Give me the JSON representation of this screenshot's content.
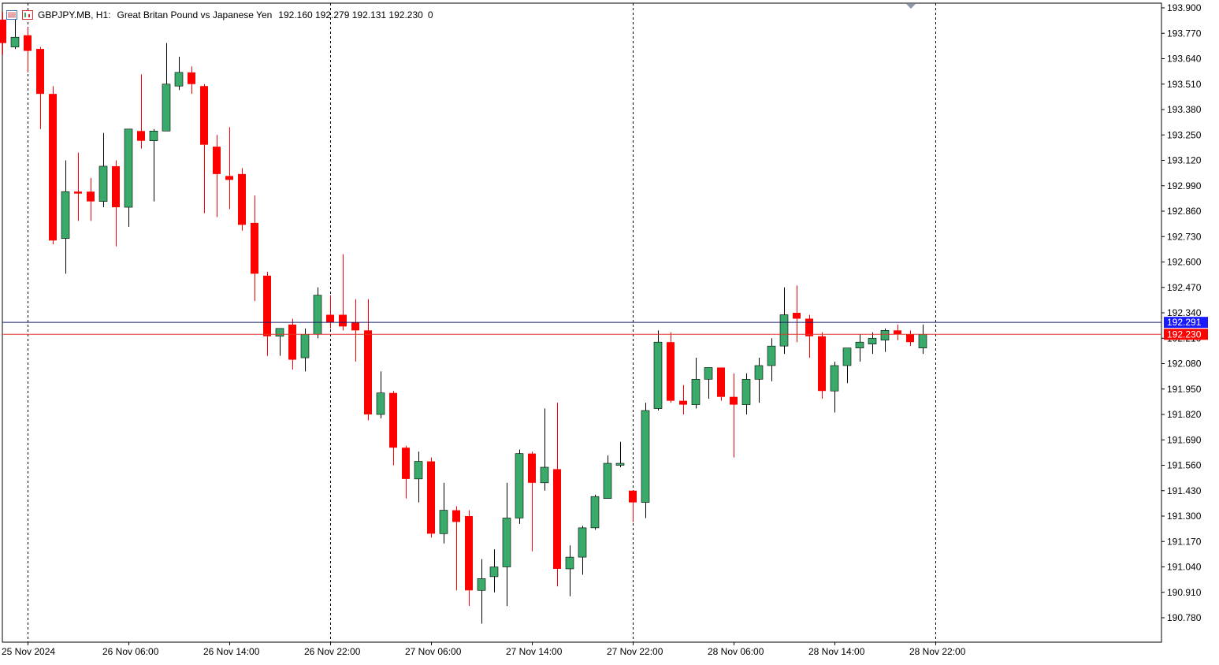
{
  "header": {
    "symbol": "GBPJPY.MB, H1:",
    "description": "Great Britan Pound vs Japanese Yen",
    "ohlc": "192.160 192.279 192.131 192.230",
    "extra": "0"
  },
  "colors": {
    "bull": "#3aaa6a",
    "bear": "#ff0000",
    "grid": "#000000",
    "ask_line": "#1a1a6e",
    "bid_line": "#e0362c",
    "ask_label_bg": "#1a1aff",
    "bid_label_bg": "#ff0000",
    "axis_text": "#000000"
  },
  "chart_data": {
    "type": "candlestick",
    "timeframe": "H1",
    "ylim": [
      190.69,
      193.91
    ],
    "y_ticks": [
      "193.900",
      "193.770",
      "193.640",
      "193.510",
      "193.380",
      "193.250",
      "193.120",
      "192.990",
      "192.860",
      "192.730",
      "192.600",
      "192.470",
      "192.340",
      "192.210",
      "192.080",
      "191.950",
      "191.820",
      "191.690",
      "191.560",
      "191.430",
      "191.300",
      "191.170",
      "191.040",
      "190.910",
      "190.780"
    ],
    "x_labels": [
      "25 Nov 2024",
      "26 Nov 06:00",
      "26 Nov 14:00",
      "26 Nov 22:00",
      "27 Nov 06:00",
      "27 Nov 14:00",
      "27 Nov 22:00",
      "28 Nov 06:00",
      "28 Nov 14:00",
      "28 Nov 22:00"
    ],
    "period_separators": [
      2,
      26,
      50,
      74
    ],
    "ask_price": "192.291",
    "bid_price": "192.230",
    "candles": [
      {
        "o": 193.84,
        "h": 193.88,
        "l": 193.66,
        "c": 193.72
      },
      {
        "o": 193.7,
        "h": 193.84,
        "l": 193.69,
        "c": 193.75
      },
      {
        "o": 193.76,
        "h": 193.8,
        "l": 193.57,
        "c": 193.68
      },
      {
        "o": 193.69,
        "h": 193.7,
        "l": 193.28,
        "c": 193.46
      },
      {
        "o": 193.46,
        "h": 193.5,
        "l": 192.69,
        "c": 192.71
      },
      {
        "o": 192.72,
        "h": 193.12,
        "l": 192.54,
        "c": 192.96
      },
      {
        "o": 192.96,
        "h": 193.16,
        "l": 192.81,
        "c": 192.95
      },
      {
        "o": 192.96,
        "h": 193.03,
        "l": 192.81,
        "c": 192.91
      },
      {
        "o": 192.91,
        "h": 193.26,
        "l": 192.88,
        "c": 193.09
      },
      {
        "o": 193.09,
        "h": 193.12,
        "l": 192.68,
        "c": 192.88
      },
      {
        "o": 192.88,
        "h": 193.28,
        "l": 192.78,
        "c": 193.28
      },
      {
        "o": 193.27,
        "h": 193.56,
        "l": 193.18,
        "c": 193.22
      },
      {
        "o": 193.22,
        "h": 193.28,
        "l": 192.91,
        "c": 193.27
      },
      {
        "o": 193.27,
        "h": 193.72,
        "l": 193.27,
        "c": 193.51
      },
      {
        "o": 193.5,
        "h": 193.65,
        "l": 193.48,
        "c": 193.57
      },
      {
        "o": 193.57,
        "h": 193.6,
        "l": 193.46,
        "c": 193.51
      },
      {
        "o": 193.5,
        "h": 193.51,
        "l": 192.85,
        "c": 193.2
      },
      {
        "o": 193.19,
        "h": 193.25,
        "l": 192.83,
        "c": 193.05
      },
      {
        "o": 193.04,
        "h": 193.29,
        "l": 192.87,
        "c": 193.02
      },
      {
        "o": 193.05,
        "h": 193.08,
        "l": 192.76,
        "c": 192.79
      },
      {
        "o": 192.8,
        "h": 192.94,
        "l": 192.4,
        "c": 192.54
      },
      {
        "o": 192.53,
        "h": 192.55,
        "l": 192.12,
        "c": 192.22
      },
      {
        "o": 192.22,
        "h": 192.26,
        "l": 192.12,
        "c": 192.26
      },
      {
        "o": 192.28,
        "h": 192.31,
        "l": 192.05,
        "c": 192.1
      },
      {
        "o": 192.11,
        "h": 192.26,
        "l": 192.04,
        "c": 192.23
      },
      {
        "o": 192.23,
        "h": 192.47,
        "l": 192.21,
        "c": 192.43
      },
      {
        "o": 192.33,
        "h": 192.43,
        "l": 192.26,
        "c": 192.29
      },
      {
        "o": 192.33,
        "h": 192.64,
        "l": 192.25,
        "c": 192.27
      },
      {
        "o": 192.29,
        "h": 192.41,
        "l": 192.09,
        "c": 192.25
      },
      {
        "o": 192.25,
        "h": 192.41,
        "l": 191.79,
        "c": 191.82
      },
      {
        "o": 191.82,
        "h": 192.04,
        "l": 191.8,
        "c": 191.93
      },
      {
        "o": 191.93,
        "h": 191.94,
        "l": 191.56,
        "c": 191.65
      },
      {
        "o": 191.65,
        "h": 191.66,
        "l": 191.39,
        "c": 191.49
      },
      {
        "o": 191.49,
        "h": 191.63,
        "l": 191.37,
        "c": 191.58
      },
      {
        "o": 191.58,
        "h": 191.6,
        "l": 191.19,
        "c": 191.21
      },
      {
        "o": 191.21,
        "h": 191.47,
        "l": 191.16,
        "c": 191.33
      },
      {
        "o": 191.33,
        "h": 191.35,
        "l": 190.92,
        "c": 191.27
      },
      {
        "o": 191.3,
        "h": 191.33,
        "l": 190.84,
        "c": 190.92
      },
      {
        "o": 190.92,
        "h": 191.08,
        "l": 190.75,
        "c": 190.98
      },
      {
        "o": 190.99,
        "h": 191.13,
        "l": 190.91,
        "c": 191.04
      },
      {
        "o": 191.04,
        "h": 191.47,
        "l": 190.84,
        "c": 191.29
      },
      {
        "o": 191.29,
        "h": 191.64,
        "l": 191.26,
        "c": 191.62
      },
      {
        "o": 191.62,
        "h": 191.63,
        "l": 191.12,
        "c": 191.47
      },
      {
        "o": 191.47,
        "h": 191.85,
        "l": 191.43,
        "c": 191.55
      },
      {
        "o": 191.54,
        "h": 191.88,
        "l": 190.94,
        "c": 191.03
      },
      {
        "o": 191.03,
        "h": 191.15,
        "l": 190.89,
        "c": 191.09
      },
      {
        "o": 191.09,
        "h": 191.25,
        "l": 191.0,
        "c": 191.24
      },
      {
        "o": 191.24,
        "h": 191.41,
        "l": 191.23,
        "c": 191.4
      },
      {
        "o": 191.39,
        "h": 191.61,
        "l": 191.39,
        "c": 191.57
      },
      {
        "o": 191.56,
        "h": 191.68,
        "l": 191.55,
        "c": 191.57
      },
      {
        "o": 191.43,
        "h": 191.43,
        "l": 191.27,
        "c": 191.37
      },
      {
        "o": 191.37,
        "h": 191.88,
        "l": 191.29,
        "c": 191.84
      },
      {
        "o": 191.85,
        "h": 192.25,
        "l": 191.84,
        "c": 192.19
      },
      {
        "o": 192.19,
        "h": 192.24,
        "l": 191.88,
        "c": 191.89
      },
      {
        "o": 191.89,
        "h": 191.97,
        "l": 191.82,
        "c": 191.87
      },
      {
        "o": 191.87,
        "h": 192.11,
        "l": 191.85,
        "c": 192.0
      },
      {
        "o": 192.0,
        "h": 192.06,
        "l": 191.9,
        "c": 192.06
      },
      {
        "o": 192.06,
        "h": 192.06,
        "l": 191.89,
        "c": 191.91
      },
      {
        "o": 191.91,
        "h": 192.03,
        "l": 191.6,
        "c": 191.87
      },
      {
        "o": 191.87,
        "h": 192.03,
        "l": 191.82,
        "c": 192.0
      },
      {
        "o": 192.0,
        "h": 192.11,
        "l": 191.88,
        "c": 192.07
      },
      {
        "o": 192.07,
        "h": 192.21,
        "l": 191.99,
        "c": 192.17
      },
      {
        "o": 192.17,
        "h": 192.47,
        "l": 192.13,
        "c": 192.33
      },
      {
        "o": 192.34,
        "h": 192.48,
        "l": 192.19,
        "c": 192.31
      },
      {
        "o": 192.31,
        "h": 192.33,
        "l": 192.11,
        "c": 192.22
      },
      {
        "o": 192.22,
        "h": 192.24,
        "l": 191.9,
        "c": 191.94
      },
      {
        "o": 191.94,
        "h": 192.09,
        "l": 191.83,
        "c": 192.07
      },
      {
        "o": 192.07,
        "h": 192.14,
        "l": 191.98,
        "c": 192.16
      },
      {
        "o": 192.16,
        "h": 192.23,
        "l": 192.09,
        "c": 192.19
      },
      {
        "o": 192.18,
        "h": 192.24,
        "l": 192.13,
        "c": 192.21
      },
      {
        "o": 192.2,
        "h": 192.26,
        "l": 192.14,
        "c": 192.25
      },
      {
        "o": 192.25,
        "h": 192.28,
        "l": 192.2,
        "c": 192.23
      },
      {
        "o": 192.23,
        "h": 192.25,
        "l": 192.17,
        "c": 192.19
      },
      {
        "o": 192.16,
        "h": 192.28,
        "l": 192.13,
        "c": 192.23
      }
    ]
  }
}
